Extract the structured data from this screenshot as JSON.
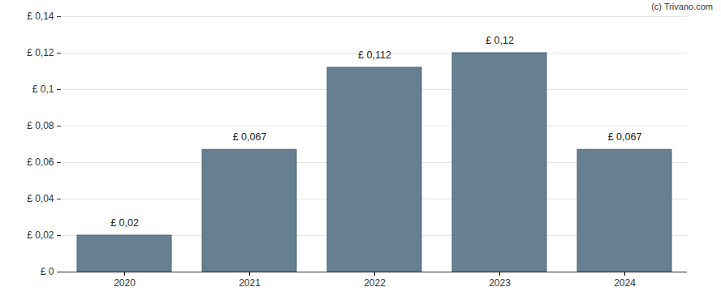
{
  "chart_data": {
    "type": "bar",
    "caption": "(c) Trivano.com",
    "categories": [
      "2020",
      "2021",
      "2022",
      "2023",
      "2024"
    ],
    "values": [
      0.02,
      0.067,
      0.112,
      0.12,
      0.067
    ],
    "value_labels": [
      "£ 0,02",
      "£ 0,067",
      "£ 0,112",
      "£ 0,12",
      "£ 0,067"
    ],
    "data_labels": true,
    "color": "#667f91",
    "ylim": [
      0,
      0.14
    ],
    "yticks": [
      {
        "value": 0,
        "label": "£ 0"
      },
      {
        "value": 0.02,
        "label": "£ 0,02"
      },
      {
        "value": 0.04,
        "label": "£ 0,04"
      },
      {
        "value": 0.06,
        "label": "£ 0,06"
      },
      {
        "value": 0.08,
        "label": "£ 0,08"
      },
      {
        "value": 0.1,
        "label": "£ 0,1"
      },
      {
        "value": 0.12,
        "label": "£ 0,12"
      },
      {
        "value": 0.14,
        "label": "£ 0,14"
      }
    ],
    "grid": true
  }
}
